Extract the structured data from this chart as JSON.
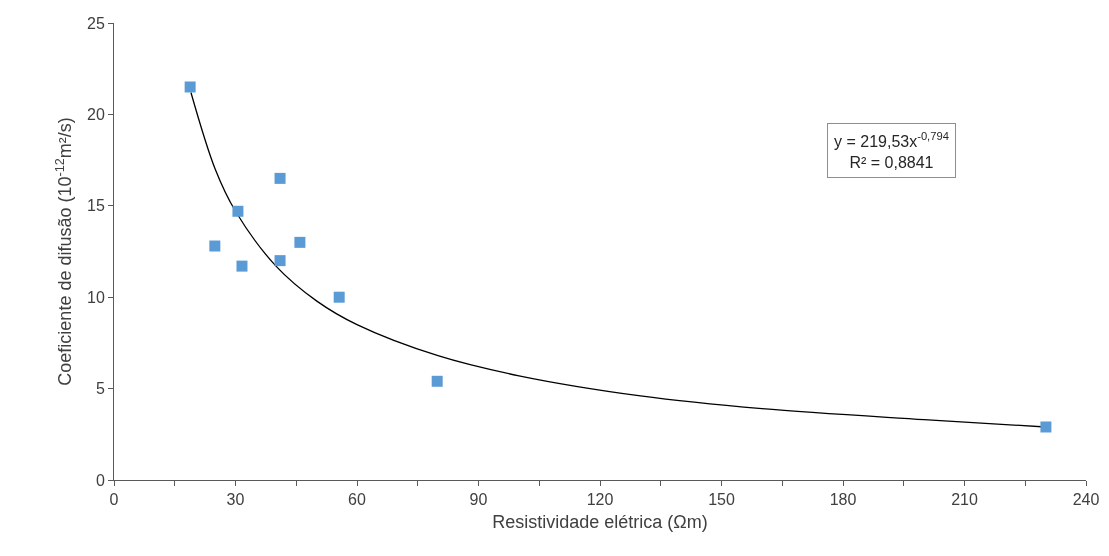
{
  "chart_data": {
    "type": "scatter",
    "xlabel": "Resistividade elétrica (Ωm)",
    "ylabel": "Coeficiente de difusão (10$^{-12}$m²/s)",
    "xlim": [
      0,
      240
    ],
    "xticks": [
      0,
      {
        "value": 15,
        "label": null
      },
      30,
      {
        "value": 45,
        "label": null
      },
      60,
      {
        "value": 75,
        "label": null
      },
      90,
      {
        "value": 105,
        "label": null
      },
      120,
      {
        "value": 135,
        "label": null
      },
      150,
      {
        "value": 165,
        "label": null
      },
      180,
      {
        "value": 195,
        "label": null
      },
      210,
      {
        "value": 225,
        "label": null
      },
      240
    ],
    "ylim": [
      0,
      25
    ],
    "yticks": [
      0,
      5,
      10,
      15,
      20,
      25
    ],
    "grid": false,
    "marker": "square",
    "annotations": [
      "y = 219,53x$^{-0,794}$",
      "R² = 0,8841"
    ],
    "series": [
      {
        "color": "#5b9bd5",
        "x": [
          18.8,
          24.9,
          30.6,
          31.6,
          41.0,
          41.0,
          45.9,
          55.6,
          79.8,
          230.1
        ],
        "values": [
          21.5,
          12.8,
          14.7,
          11.7,
          16.5,
          12.0,
          13.0,
          10.0,
          5.4,
          2.9
        ]
      },
      {
        "type": "line",
        "marker": "none",
        "color": "#000000",
        "x": [
          19,
          25,
          30,
          40,
          50,
          60,
          80,
          100,
          130,
          160,
          200,
          230
        ],
        "values": [
          21.2,
          17.0,
          14.7,
          11.7,
          9.8,
          8.5,
          6.8,
          5.7,
          4.6,
          3.9,
          3.3,
          2.9
        ]
      }
    ]
  }
}
